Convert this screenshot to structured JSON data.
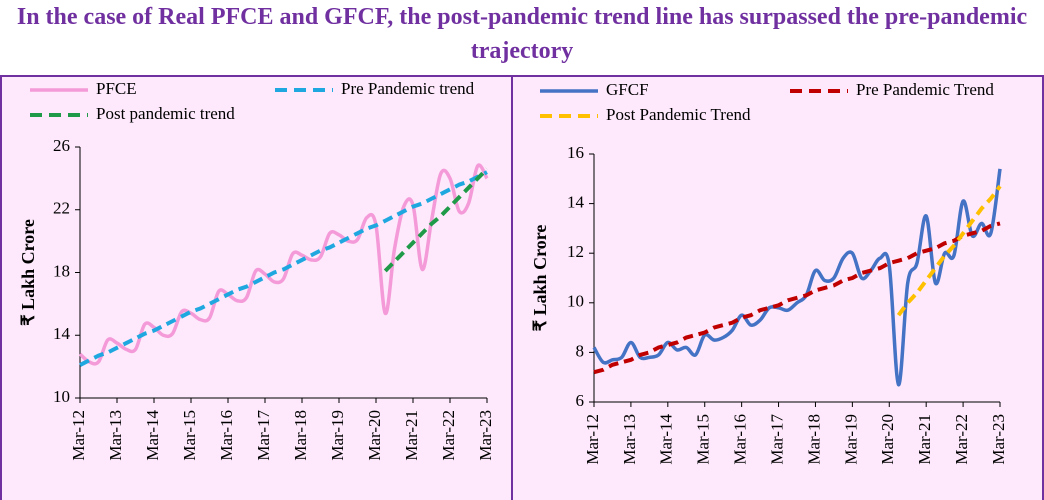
{
  "title": "In the case of Real PFCE and GFCF, the post-pandemic trend line has surpassed the pre-pandemic trajectory",
  "chart_data": [
    {
      "type": "line",
      "y_label": "₹ Lakh Crore",
      "categories": [
        "Mar-12",
        null,
        null,
        null,
        "Mar-13",
        null,
        null,
        null,
        "Mar-14",
        null,
        null,
        null,
        "Mar-15",
        null,
        null,
        null,
        "Mar-16",
        null,
        null,
        null,
        "Mar-17",
        null,
        null,
        null,
        "Mar-18",
        null,
        null,
        null,
        "Mar-19",
        null,
        null,
        null,
        "Mar-20",
        null,
        null,
        null,
        "Mar-21",
        null,
        null,
        null,
        "Mar-22",
        null,
        null,
        null,
        "Mar-23"
      ],
      "ylim": [
        10,
        26
      ],
      "yticks": [
        10,
        14,
        18,
        22,
        26
      ],
      "grid": false,
      "series": [
        {
          "name": "PFCE",
          "color": "#f49ad8",
          "dashed": false,
          "values": [
            12.8,
            12.3,
            12.3,
            13.7,
            13.5,
            13.1,
            13.1,
            14.7,
            14.5,
            14.0,
            14.1,
            15.5,
            15.4,
            15.0,
            15.1,
            16.8,
            16.6,
            16.2,
            16.4,
            18.1,
            17.9,
            17.4,
            17.6,
            19.2,
            19.1,
            18.8,
            19.0,
            20.5,
            20.4,
            20.0,
            20.1,
            21.5,
            21.0,
            15.4,
            19.5,
            22.2,
            22.3,
            18.2,
            21.3,
            24.3,
            24.0,
            21.9,
            22.4,
            24.8,
            24.0
          ]
        },
        {
          "name": "Pre Pandemic trend",
          "color": "#1fa8e0",
          "dashed": true,
          "values": [
            12.1,
            12.4,
            12.7,
            12.9,
            13.2,
            13.5,
            13.8,
            14.1,
            14.3,
            14.6,
            14.9,
            15.2,
            15.5,
            15.7,
            16.0,
            16.3,
            16.6,
            16.9,
            17.1,
            17.4,
            17.7,
            18.0,
            18.2,
            18.5,
            18.8,
            19.1,
            19.4,
            19.6,
            19.9,
            20.2,
            20.5,
            20.8,
            21.0,
            21.3,
            21.6,
            21.9,
            22.2,
            22.4,
            22.7,
            23.0,
            23.3,
            23.6,
            23.8,
            24.1,
            24.4
          ]
        },
        {
          "name": "Post pandemic trend",
          "color": "#1f9a48",
          "dashed": true,
          "values": [
            null,
            null,
            null,
            null,
            null,
            null,
            null,
            null,
            null,
            null,
            null,
            null,
            null,
            null,
            null,
            null,
            null,
            null,
            null,
            null,
            null,
            null,
            null,
            null,
            null,
            null,
            null,
            null,
            null,
            null,
            null,
            null,
            null,
            18.1,
            18.7,
            19.3,
            19.9,
            20.5,
            21.1,
            21.6,
            22.2,
            22.8,
            23.4,
            24.0,
            24.6
          ]
        }
      ]
    },
    {
      "type": "line",
      "y_label": "₹ Lakh Crore",
      "categories": [
        "Mar-12",
        null,
        null,
        null,
        "Mar-13",
        null,
        null,
        null,
        "Mar-14",
        null,
        null,
        null,
        "Mar-15",
        null,
        null,
        null,
        "Mar-16",
        null,
        null,
        null,
        "Mar-17",
        null,
        null,
        null,
        "Mar-18",
        null,
        null,
        null,
        "Mar-19",
        null,
        null,
        null,
        "Mar-20",
        null,
        null,
        null,
        "Mar-21",
        null,
        null,
        null,
        "Mar-22",
        null,
        null,
        null,
        "Mar-23"
      ],
      "ylim": [
        6,
        16
      ],
      "yticks": [
        6,
        8,
        10,
        12,
        14,
        16
      ],
      "grid": false,
      "series": [
        {
          "name": "GFCF",
          "color": "#4472c4",
          "dashed": false,
          "values": [
            8.2,
            7.6,
            7.7,
            7.8,
            8.4,
            7.8,
            7.8,
            7.9,
            8.4,
            8.1,
            8.2,
            7.9,
            8.7,
            8.5,
            8.6,
            8.9,
            9.5,
            9.1,
            9.3,
            9.8,
            9.8,
            9.7,
            10.0,
            10.3,
            11.3,
            10.9,
            11.0,
            11.8,
            12.0,
            11.0,
            11.3,
            11.8,
            11.5,
            6.7,
            10.8,
            11.6,
            13.5,
            10.8,
            12.0,
            11.9,
            14.1,
            12.7,
            13.2,
            12.8,
            15.4
          ]
        },
        {
          "name": "Pre Pandemic Trend",
          "color": "#c00000",
          "dashed": true,
          "values": [
            7.2,
            7.3,
            7.5,
            7.6,
            7.7,
            7.9,
            8.0,
            8.2,
            8.3,
            8.4,
            8.6,
            8.7,
            8.8,
            9.0,
            9.1,
            9.2,
            9.4,
            9.5,
            9.7,
            9.8,
            9.9,
            10.1,
            10.2,
            10.3,
            10.5,
            10.6,
            10.7,
            10.9,
            11.0,
            11.2,
            11.3,
            11.4,
            11.6,
            11.7,
            11.8,
            12.0,
            12.1,
            12.2,
            12.4,
            12.5,
            12.7,
            12.8,
            12.9,
            13.1,
            13.2
          ]
        },
        {
          "name": "Post Pandemic Trend",
          "color": "#ffc000",
          "dashed": true,
          "values": [
            null,
            null,
            null,
            null,
            null,
            null,
            null,
            null,
            null,
            null,
            null,
            null,
            null,
            null,
            null,
            null,
            null,
            null,
            null,
            null,
            null,
            null,
            null,
            null,
            null,
            null,
            null,
            null,
            null,
            null,
            null,
            null,
            null,
            9.5,
            10.0,
            10.4,
            10.9,
            11.4,
            11.9,
            12.3,
            12.8,
            13.3,
            13.8,
            14.2,
            14.7
          ]
        }
      ]
    }
  ]
}
